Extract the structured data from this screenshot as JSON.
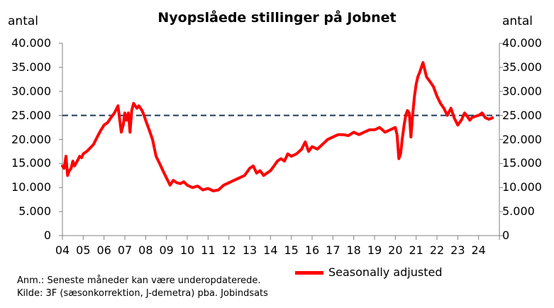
{
  "chart_data": {
    "type": "line",
    "title": "Nyopslåede stillinger på Jobnet",
    "ylabel_left": "antal",
    "ylabel_right": "antal",
    "ylim": [
      0,
      40000
    ],
    "y_ticks": [
      "40.000",
      "35.000",
      "30.000",
      "25.000",
      "20.000",
      "15.000",
      "10.000",
      "5.000",
      "0"
    ],
    "y_tick_values": [
      40000,
      35000,
      30000,
      25000,
      20000,
      15000,
      10000,
      5000,
      0
    ],
    "x_ticks": [
      "04",
      "05",
      "06",
      "07",
      "08",
      "09",
      "10",
      "11",
      "12",
      "13",
      "14",
      "15",
      "16",
      "17",
      "18",
      "19",
      "20",
      "21",
      "22",
      "23",
      "24"
    ],
    "x_tick_years": [
      2004,
      2005,
      2006,
      2007,
      2008,
      2009,
      2010,
      2011,
      2012,
      2013,
      2014,
      2015,
      2016,
      2017,
      2018,
      2019,
      2020,
      2021,
      2022,
      2023,
      2024
    ],
    "xlim": [
      2004.0,
      2025.0
    ],
    "reference_line": {
      "value": 25000,
      "color": "#1f3b5a",
      "style": "dashed"
    },
    "series": [
      {
        "name": "Seasonally adjusted",
        "color": "#ff0000",
        "x": [
          2004.0,
          2004.08,
          2004.17,
          2004.25,
          2004.33,
          2004.42,
          2004.5,
          2004.58,
          2004.67,
          2004.75,
          2004.83,
          2004.92,
          2005.0,
          2005.17,
          2005.33,
          2005.5,
          2005.67,
          2005.83,
          2006.0,
          2006.17,
          2006.33,
          2006.5,
          2006.67,
          2006.83,
          2006.92,
          2007.0,
          2007.08,
          2007.17,
          2007.25,
          2007.33,
          2007.42,
          2007.5,
          2007.58,
          2007.67,
          2007.75,
          2007.83,
          2007.92,
          2008.0,
          2008.17,
          2008.33,
          2008.5,
          2008.67,
          2008.83,
          2009.0,
          2009.17,
          2009.33,
          2009.5,
          2009.67,
          2009.83,
          2010.0,
          2010.25,
          2010.5,
          2010.75,
          2011.0,
          2011.25,
          2011.5,
          2011.75,
          2012.0,
          2012.25,
          2012.5,
          2012.75,
          2013.0,
          2013.17,
          2013.33,
          2013.5,
          2013.67,
          2013.83,
          2014.0,
          2014.17,
          2014.33,
          2014.5,
          2014.67,
          2014.83,
          2015.0,
          2015.25,
          2015.5,
          2015.67,
          2015.83,
          2016.0,
          2016.25,
          2016.5,
          2016.75,
          2017.0,
          2017.25,
          2017.5,
          2017.75,
          2018.0,
          2018.25,
          2018.5,
          2018.75,
          2019.0,
          2019.25,
          2019.5,
          2019.75,
          2020.0,
          2020.08,
          2020.17,
          2020.25,
          2020.33,
          2020.42,
          2020.5,
          2020.58,
          2020.67,
          2020.75,
          2020.83,
          2020.92,
          2021.0,
          2021.08,
          2021.17,
          2021.25,
          2021.33,
          2021.5,
          2021.67,
          2021.83,
          2022.0,
          2022.17,
          2022.33,
          2022.5,
          2022.67,
          2022.83,
          2023.0,
          2023.17,
          2023.33,
          2023.42,
          2023.5,
          2023.58,
          2023.67,
          2023.83,
          2024.0,
          2024.17,
          2024.33,
          2024.5,
          2024.67
        ],
        "values": [
          14500,
          14000,
          16500,
          12500,
          13500,
          14000,
          15500,
          14500,
          15200,
          15800,
          16500,
          16200,
          17000,
          17500,
          18200,
          19000,
          20500,
          21800,
          23000,
          23500,
          24500,
          25500,
          27000,
          21500,
          23000,
          25500,
          24000,
          25500,
          21500,
          26000,
          27500,
          27000,
          26500,
          27000,
          26500,
          26000,
          25000,
          24000,
          22000,
          20000,
          16500,
          15000,
          13500,
          12000,
          10500,
          11500,
          11000,
          10800,
          11200,
          10500,
          10000,
          10300,
          9500,
          9800,
          9300,
          9500,
          10500,
          11000,
          11500,
          12000,
          12500,
          14000,
          14500,
          13000,
          13500,
          12500,
          13000,
          13500,
          14500,
          15500,
          16000,
          15500,
          17000,
          16500,
          17000,
          18000,
          19500,
          17500,
          18500,
          18000,
          19000,
          20000,
          20500,
          21000,
          21000,
          20800,
          21500,
          21000,
          21500,
          22000,
          22000,
          22500,
          21500,
          22000,
          22500,
          21000,
          16000,
          17000,
          20000,
          23000,
          25000,
          26000,
          25500,
          20500,
          25000,
          29000,
          31500,
          33000,
          34000,
          35000,
          36000,
          33000,
          32000,
          31000,
          29000,
          27500,
          26500,
          25000,
          26500,
          24500,
          23000,
          24000,
          25500,
          25000,
          24500,
          24000,
          24500,
          24800,
          25000,
          25500,
          24500,
          24200,
          24500
        ]
      }
    ]
  },
  "legend": {
    "label": "Seasonally adjusted",
    "position": "bottom-center"
  },
  "notes": [
    "Anm.: Seneste måneder  kan være underopdaterede.",
    "Kilde: 3F (sæsonkorrektion, J-demetra) pba. Jobindsats"
  ]
}
